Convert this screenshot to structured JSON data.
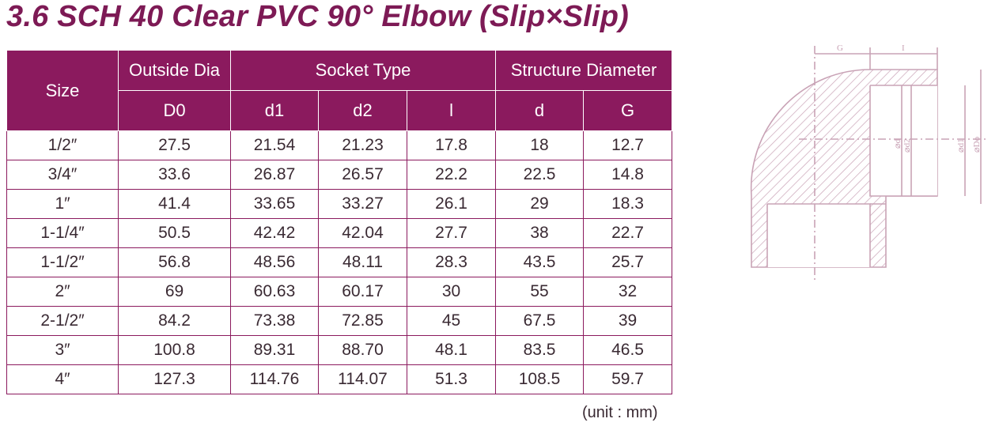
{
  "title": "3.6 SCH 40 Clear PVC 90° Elbow (Slip×Slip)",
  "table": {
    "header_row1": {
      "size": "Size",
      "outside_dia": "Outside Dia",
      "socket_type": "Socket Type",
      "structure_diameter": "Structure Diameter"
    },
    "header_row2": [
      "D0",
      "d1",
      "d2",
      "l",
      "d",
      "G"
    ],
    "rows": [
      [
        "1/2″",
        "27.5",
        "21.54",
        "21.23",
        "17.8",
        "18",
        "12.7"
      ],
      [
        "3/4″",
        "33.6",
        "26.87",
        "26.57",
        "22.2",
        "22.5",
        "14.8"
      ],
      [
        "1″",
        "41.4",
        "33.65",
        "33.27",
        "26.1",
        "29",
        "18.3"
      ],
      [
        "1-1/4″",
        "50.5",
        "42.42",
        "42.04",
        "27.7",
        "38",
        "22.7"
      ],
      [
        "1-1/2″",
        "56.8",
        "48.56",
        "48.11",
        "28.3",
        "43.5",
        "25.7"
      ],
      [
        "2″",
        "69",
        "60.63",
        "60.17",
        "30",
        "55",
        "32"
      ],
      [
        "2-1/2″",
        "84.2",
        "73.38",
        "72.85",
        "45",
        "67.5",
        "39"
      ],
      [
        "3″",
        "100.8",
        "89.31",
        "88.70",
        "48.1",
        "83.5",
        "46.5"
      ],
      [
        "4″",
        "127.3",
        "114.76",
        "114.07",
        "51.3",
        "108.5",
        "59.7"
      ]
    ]
  },
  "unit_note": "(unit : mm)",
  "drawing": {
    "label_g": "G",
    "label_l": "I",
    "label_d": "⌀d",
    "label_d2": "⌀d2",
    "label_d1": "⌀d1",
    "label_do": "⌀Do"
  },
  "colors": {
    "title": "#7d1a55",
    "header_bg": "#8b1a5e",
    "drawing_line": "#c9a3b6"
  }
}
